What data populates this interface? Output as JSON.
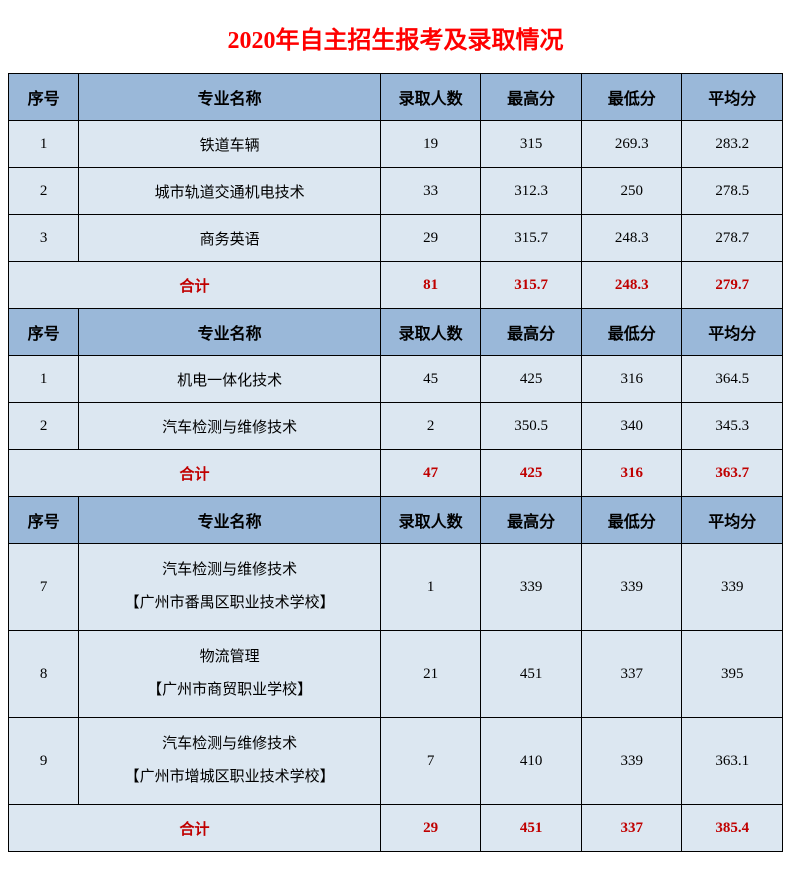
{
  "title": "2020年自主招生报考及录取情况",
  "colors": {
    "title": "#ff0000",
    "header_bg": "#9ab8d9",
    "row_bg": "#dce7f1",
    "total_text": "#c00000",
    "border": "#000000",
    "text": "#000000"
  },
  "columns": [
    "序号",
    "专业名称",
    "录取人数",
    "最高分",
    "最低分",
    "平均分"
  ],
  "total_label": "合计",
  "sections": [
    {
      "rows": [
        {
          "no": "1",
          "name": "铁道车辆",
          "count": "19",
          "max": "315",
          "min": "269.3",
          "avg": "283.2"
        },
        {
          "no": "2",
          "name": "城市轨道交通机电技术",
          "count": "33",
          "max": "312.3",
          "min": "250",
          "avg": "278.5"
        },
        {
          "no": "3",
          "name": "商务英语",
          "count": "29",
          "max": "315.7",
          "min": "248.3",
          "avg": "278.7"
        }
      ],
      "total": {
        "count": "81",
        "max": "315.7",
        "min": "248.3",
        "avg": "279.7"
      }
    },
    {
      "rows": [
        {
          "no": "1",
          "name": "机电一体化技术",
          "count": "45",
          "max": "425",
          "min": "316",
          "avg": "364.5"
        },
        {
          "no": "2",
          "name": "汽车检测与维修技术",
          "count": "2",
          "max": "350.5",
          "min": "340",
          "avg": "345.3"
        }
      ],
      "total": {
        "count": "47",
        "max": "425",
        "min": "316",
        "avg": "363.7"
      }
    },
    {
      "rows": [
        {
          "no": "7",
          "name": "汽车检测与维修技术",
          "sub": "【广州市番禺区职业技术学校】",
          "count": "1",
          "max": "339",
          "min": "339",
          "avg": "339"
        },
        {
          "no": "8",
          "name": "物流管理",
          "sub": "【广州市商贸职业学校】",
          "count": "21",
          "max": "451",
          "min": "337",
          "avg": "395"
        },
        {
          "no": "9",
          "name": "汽车检测与维修技术",
          "sub": "【广州市增城区职业技术学校】",
          "count": "7",
          "max": "410",
          "min": "339",
          "avg": "363.1"
        }
      ],
      "total": {
        "count": "29",
        "max": "451",
        "min": "337",
        "avg": "385.4"
      }
    }
  ]
}
